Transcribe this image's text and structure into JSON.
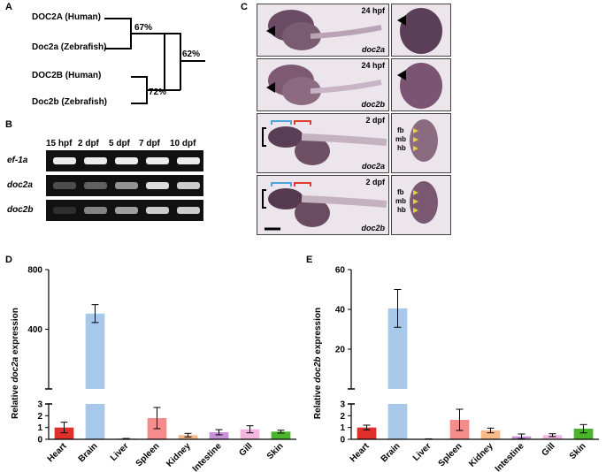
{
  "panels": {
    "A": "A",
    "B": "B",
    "C": "C",
    "D": "D",
    "E": "E"
  },
  "tree": {
    "labels": [
      "DOC2A (Human)",
      "Doc2a (Zebrafish)",
      "DOC2B (Human)",
      "Doc2b (Zebrafish)"
    ],
    "pct_a": "67%",
    "pct_b": "72%",
    "pct_root": "62%"
  },
  "gel": {
    "columns": [
      "15 hpf",
      "2 dpf",
      "5 dpf",
      "7 dpf",
      "10 dpf"
    ],
    "rows": [
      "ef-1a",
      "doc2a",
      "doc2b"
    ],
    "band_intensity": [
      [
        0.95,
        0.95,
        0.95,
        0.95,
        0.95
      ],
      [
        0.35,
        0.45,
        0.65,
        0.9,
        0.85
      ],
      [
        0.15,
        0.6,
        0.7,
        0.85,
        0.85
      ]
    ]
  },
  "insitu": {
    "stages": [
      "24 hpf",
      "24 hpf",
      "2 dpf",
      "2 dpf"
    ],
    "genes": [
      "doc2a",
      "doc2b",
      "doc2a",
      "doc2b"
    ],
    "region_labels": [
      "fb",
      "mb",
      "hb"
    ]
  },
  "chart_data": [
    {
      "type": "bar",
      "ylabel_prefix": "Relative ",
      "ylabel_gene": "doc2a",
      "ylabel_suffix": " expression",
      "categories": [
        "Heart",
        "Brain",
        "Liver",
        "Spleen",
        "Kidney",
        "Intestine",
        "Gill",
        "Skin"
      ],
      "values": [
        1.0,
        505,
        0.05,
        1.8,
        0.35,
        0.6,
        0.85,
        0.65
      ],
      "errors": [
        0.45,
        60,
        0.02,
        0.9,
        0.15,
        0.22,
        0.3,
        0.12
      ],
      "colors": [
        "#e0302b",
        "#a8c8ea",
        "#8e2b78",
        "#f58c8c",
        "#f5b98a",
        "#c792d6",
        "#f2b6e0",
        "#49b42b"
      ],
      "y_lower_range": [
        0,
        3
      ],
      "y_lower_ticks": [
        "0",
        "1",
        "2",
        "3"
      ],
      "y_upper_range": [
        0,
        800
      ],
      "y_upper_ticks": [
        "400",
        "800"
      ]
    },
    {
      "type": "bar",
      "ylabel_prefix": "Relative ",
      "ylabel_gene": "doc2b",
      "ylabel_suffix": " expression",
      "categories": [
        "Heart",
        "Brain",
        "Liver",
        "Spleen",
        "Kidney",
        "Intestine",
        "Gill",
        "Skin"
      ],
      "values": [
        1.0,
        40.5,
        0.03,
        1.65,
        0.75,
        0.25,
        0.35,
        0.9
      ],
      "errors": [
        0.2,
        9.5,
        0.01,
        0.9,
        0.2,
        0.2,
        0.12,
        0.35
      ],
      "colors": [
        "#e0302b",
        "#a8c8ea",
        "#8e2b78",
        "#f58c8c",
        "#f5b98a",
        "#c792d6",
        "#f2b6e0",
        "#49b42b"
      ],
      "y_lower_range": [
        0,
        3
      ],
      "y_lower_ticks": [
        "0",
        "1",
        "2",
        "3"
      ],
      "y_upper_range": [
        0,
        60
      ],
      "y_upper_ticks": [
        "20",
        "40",
        "60"
      ]
    }
  ]
}
